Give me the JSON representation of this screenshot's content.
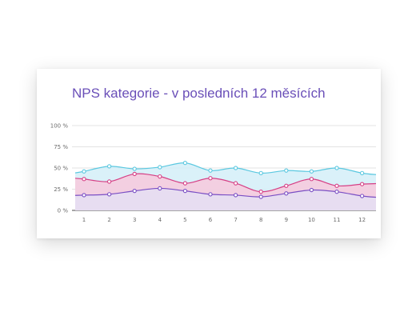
{
  "chart_data": {
    "type": "area",
    "title": "NPS kategorie - v posledních 12 měsících",
    "xlabel": "",
    "ylabel": "",
    "categories": [
      "1",
      "2",
      "3",
      "4",
      "5",
      "6",
      "7",
      "8",
      "9",
      "10",
      "11",
      "12"
    ],
    "ylim": [
      0,
      100
    ],
    "yticks": [
      "0 %",
      "25 %",
      "50 %",
      "75 %",
      "100 %"
    ],
    "grid": true,
    "legend": "none",
    "series": [
      {
        "color": "#5bc8e0",
        "fill": "#d4eff8",
        "values": [
          46,
          52,
          49,
          51,
          56,
          47,
          50,
          44,
          47,
          46,
          50,
          44
        ]
      },
      {
        "color": "#d63f85",
        "fill": "#f7c9dd",
        "values": [
          37,
          34,
          43,
          40,
          32,
          38,
          32,
          22,
          29,
          37,
          29,
          31
        ]
      },
      {
        "color": "#7a4fc4",
        "fill": "#e4dff3",
        "values": [
          18,
          19,
          23,
          26,
          23,
          19,
          18,
          16,
          20,
          24,
          22,
          17
        ]
      }
    ]
  }
}
